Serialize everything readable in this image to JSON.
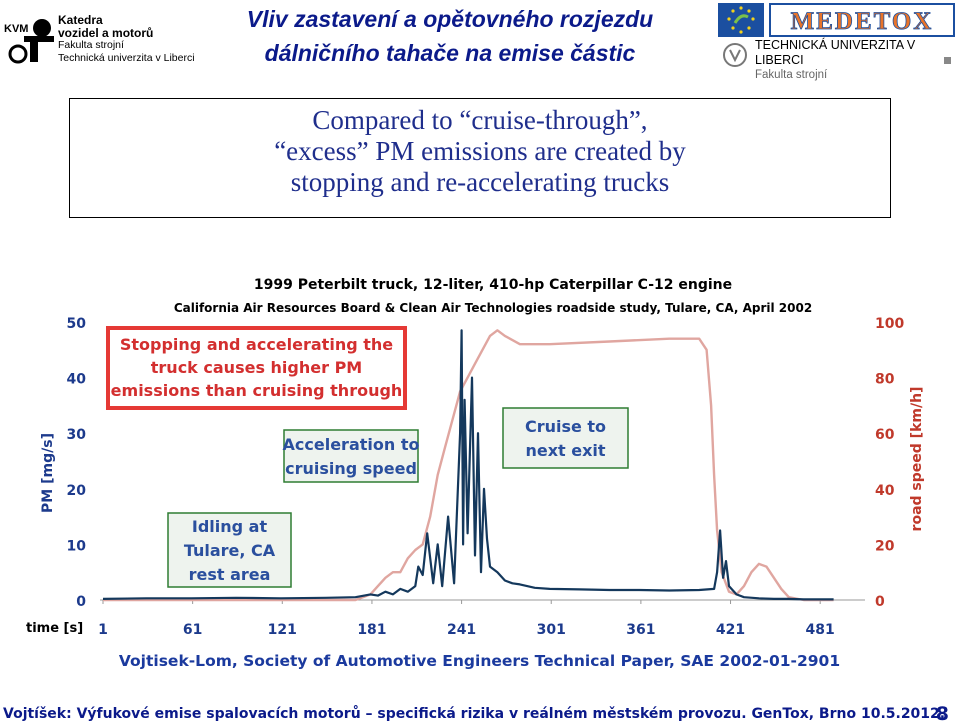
{
  "header": {
    "kvm_abbr": "KVM",
    "kvm_line1": "Katedra",
    "kvm_line2": "vozidel a motorů",
    "kvm_line3": "Fakulta strojní",
    "kvm_line4": "Technická univerzita v Liberci",
    "title_line1": "Vliv zastavení a opětovného rozjezdu",
    "title_line2": "dálničního tahače na emise částic",
    "medetox_text": "MEDETOX",
    "tul_line1": "TECHNICKÁ UNIVERZITA V LIBERCI",
    "tul_line2": "Fakulta strojní"
  },
  "callout": {
    "line1": "Compared to “cruise-through”,",
    "line2": "“excess” PM emissions are created by",
    "line3": "stopping and re-accelerating trucks"
  },
  "chart_data": {
    "type": "line",
    "title": "1999 Peterbilt truck, 12-liter, 410-hp Caterpillar C-12 engine",
    "subtitle": "California Air Resources Board & Clean Air Technologies roadside study, Tulare, CA, April 2002",
    "xlabel": "time [s]",
    "ylabel_left": "PM [mg/s]",
    "ylabel_right": "road speed [km/h]",
    "x_ticks": [
      1,
      61,
      121,
      181,
      241,
      301,
      361,
      421,
      481
    ],
    "xlim": [
      -1,
      511
    ],
    "ylim_left": [
      0,
      50
    ],
    "ylim_right": [
      0,
      100
    ],
    "y_ticks_left": [
      0,
      10,
      20,
      30,
      40,
      50
    ],
    "y_ticks_right": [
      0,
      20,
      40,
      60,
      80,
      100
    ],
    "grid": false,
    "colors": {
      "pm": "#14385c",
      "speed": "#e0a6a0",
      "left_axis": "#1c3a8c",
      "right_axis": "#c0392b"
    },
    "series": [
      {
        "axis": "left",
        "x": [
          1,
          30,
          60,
          90,
          120,
          150,
          170,
          180,
          185,
          190,
          195,
          200,
          205,
          210,
          212,
          215,
          218,
          222,
          225,
          228,
          232,
          236,
          240,
          241,
          242,
          243,
          245,
          248,
          250,
          252,
          254,
          256,
          258,
          260,
          265,
          270,
          275,
          280,
          290,
          300,
          320,
          340,
          360,
          380,
          400,
          410,
          412,
          414,
          416,
          418,
          420,
          425,
          430,
          440,
          450,
          460,
          470,
          490
        ],
        "values": [
          0.2,
          0.3,
          0.3,
          0.4,
          0.3,
          0.4,
          0.5,
          1.0,
          0.8,
          1.5,
          1.0,
          2.0,
          1.5,
          2.5,
          6.0,
          4.5,
          12.0,
          3.0,
          10.0,
          2.5,
          15.0,
          3.0,
          30.0,
          48.5,
          10.0,
          36.0,
          12.0,
          40.0,
          8.0,
          30.0,
          5.0,
          20.0,
          11.0,
          6.0,
          5.0,
          3.5,
          3.0,
          2.8,
          2.2,
          2.0,
          1.9,
          1.8,
          1.8,
          1.7,
          1.8,
          2.0,
          5.0,
          12.5,
          4.0,
          7.0,
          2.5,
          1.0,
          0.5,
          0.3,
          0.2,
          0.2,
          0.1,
          0.1
        ]
      },
      {
        "axis": "right",
        "x": [
          1,
          170,
          180,
          185,
          190,
          195,
          200,
          205,
          210,
          215,
          220,
          225,
          230,
          235,
          240,
          245,
          250,
          255,
          260,
          265,
          270,
          280,
          300,
          340,
          380,
          400,
          405,
          408,
          410,
          412,
          415,
          420,
          425,
          430,
          435,
          440,
          445,
          450,
          455,
          460,
          470,
          490
        ],
        "values": [
          0,
          0,
          2,
          5,
          8,
          10,
          10,
          15,
          18,
          20,
          30,
          45,
          55,
          65,
          75,
          80,
          85,
          90,
          95,
          97,
          95,
          92,
          92,
          93,
          94,
          94,
          90,
          70,
          45,
          25,
          10,
          3,
          2,
          5,
          10,
          13,
          12,
          8,
          4,
          1,
          0,
          0
        ]
      }
    ],
    "annotations": [
      {
        "text": "Stopping and accelerating the truck causes higher PM emissions than cruising through",
        "style": "red-box"
      },
      {
        "text": "Acceleration to cruising speed",
        "style": "green-box"
      },
      {
        "text": "Cruise to next exit",
        "style": "green-box"
      },
      {
        "text": "Idling at Tulare, CA rest area",
        "style": "green-box"
      }
    ]
  },
  "citation": "Vojtisek-Lom, Society of Automotive Engineers Technical Paper, SAE 2002-01-2901",
  "footer": {
    "text": "Vojtíšek: Výfukové emise spalovacích motorů – specifická rizika v reálném městském provozu. GenTox, Brno 10.5.2012.",
    "page": "8"
  }
}
